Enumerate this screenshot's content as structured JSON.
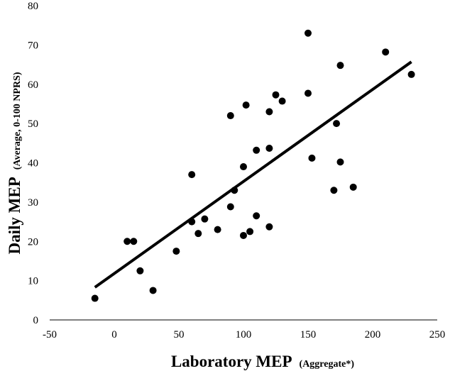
{
  "chart_data": {
    "type": "scatter",
    "title": "",
    "xlabel": {
      "main": "Laboratory MEP",
      "sub": "(Aggregate*)"
    },
    "ylabel": {
      "main": "Daily MEP",
      "sub": "(Average, 0-100 NPRS)"
    },
    "xlim": [
      -50,
      250
    ],
    "ylim": [
      0,
      80
    ],
    "xticks": [
      -50,
      0,
      50,
      100,
      150,
      200,
      250
    ],
    "yticks": [
      0,
      10,
      20,
      30,
      40,
      50,
      60,
      70,
      80
    ],
    "grid": false,
    "legend": "none",
    "point_color": "#000000",
    "series": [
      {
        "points": [
          [
            -15,
            5.5
          ],
          [
            10,
            20
          ],
          [
            15,
            20
          ],
          [
            20,
            12.5
          ],
          [
            30,
            7.5
          ],
          [
            48,
            17.5
          ],
          [
            60,
            37
          ],
          [
            60,
            25
          ],
          [
            65,
            22
          ],
          [
            70,
            25.7
          ],
          [
            80,
            23
          ],
          [
            90,
            52
          ],
          [
            90,
            28.8
          ],
          [
            93,
            33
          ],
          [
            100,
            39
          ],
          [
            100,
            21.5
          ],
          [
            102,
            54.7
          ],
          [
            105,
            22.5
          ],
          [
            110,
            43.2
          ],
          [
            110,
            26.5
          ],
          [
            120,
            53
          ],
          [
            120,
            43.7
          ],
          [
            120,
            23.7
          ],
          [
            125,
            57.3
          ],
          [
            130,
            55.7
          ],
          [
            150,
            73
          ],
          [
            150,
            57.7
          ],
          [
            153,
            41.2
          ],
          [
            170,
            33
          ],
          [
            172,
            50
          ],
          [
            175,
            64.8
          ],
          [
            175,
            40.2
          ],
          [
            185,
            33.8
          ],
          [
            210,
            68.2
          ],
          [
            230,
            62.5
          ]
        ]
      }
    ],
    "trendline": {
      "type": "linear",
      "from": [
        -15,
        8.3
      ],
      "to": [
        230,
        65.7
      ]
    }
  }
}
